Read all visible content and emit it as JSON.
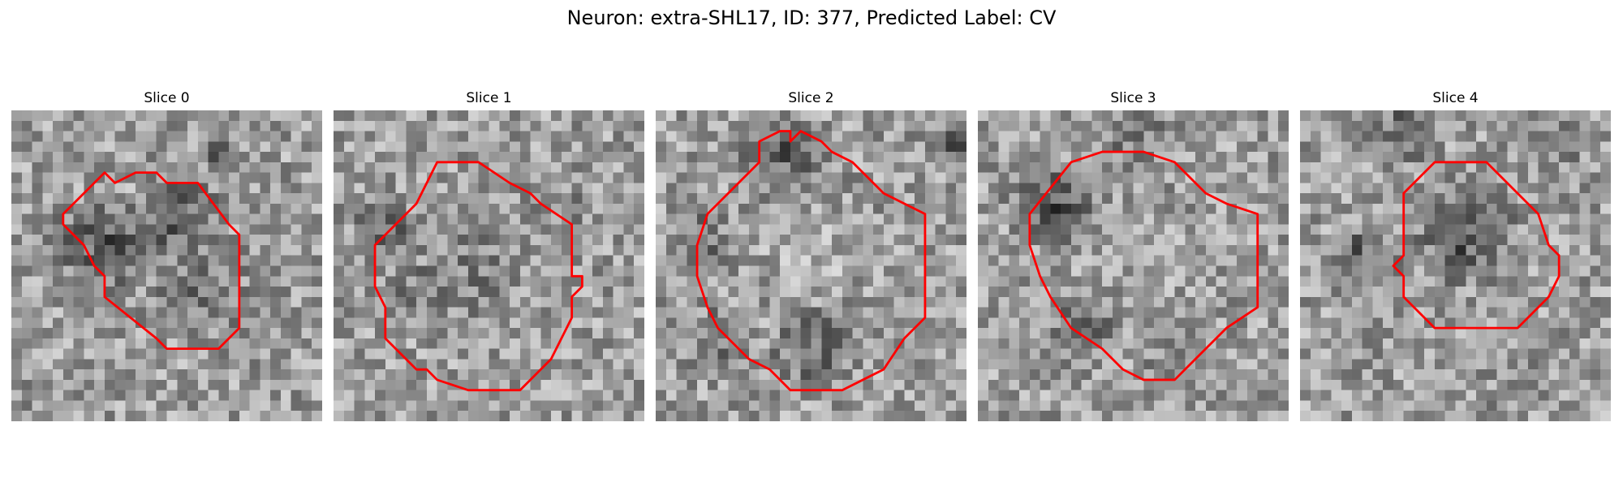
{
  "figure": {
    "title": "Neuron: extra-SHL17, ID: 377, Predicted Label: CV",
    "panels": [
      {
        "label": "Slice 0",
        "seed": 11,
        "outline": "#ff0000"
      },
      {
        "label": "Slice 1",
        "seed": 23,
        "outline": "#ff0000"
      },
      {
        "label": "Slice 2",
        "seed": 37,
        "outline": "#ff0000"
      },
      {
        "label": "Slice 3",
        "seed": 41,
        "outline": "#ff0000"
      },
      {
        "label": "Slice 4",
        "seed": 59,
        "outline": "#ff0000"
      }
    ]
  }
}
